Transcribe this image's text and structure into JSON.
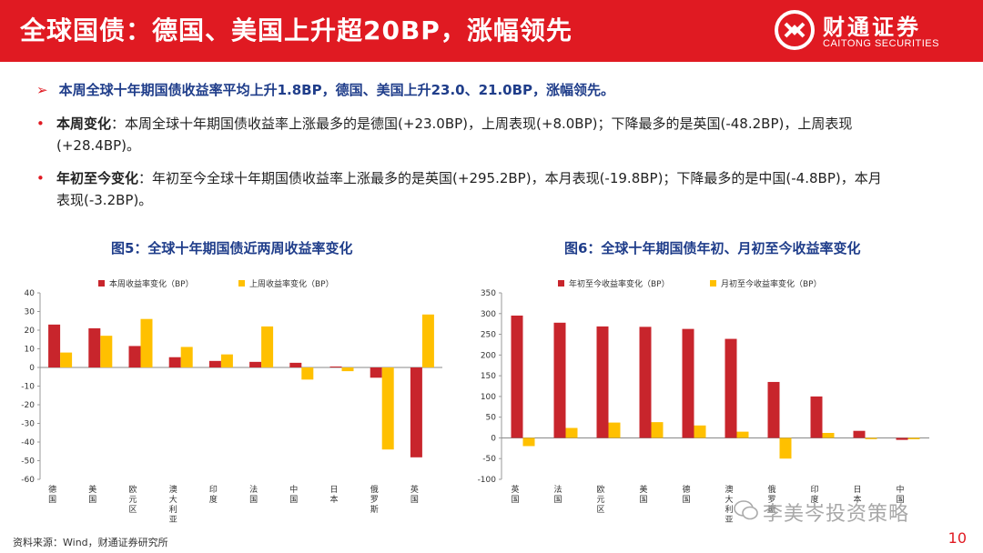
{
  "header": {
    "title": "全球国债：德国、美国上升超20BP，涨幅领先",
    "logo_cn": "财通证券",
    "logo_en": "CAITONG SECURITIES",
    "brand_color": "#e01a22"
  },
  "lead": "本周全球十年期国债收益率平均上升1.8BP，德国、美国上升23.0、21.0BP，涨幅领先。",
  "bullets": [
    {
      "label": "本周变化",
      "text": "：本周全球十年期国债收益率上涨最多的是德国(+23.0BP)，上周表现(+8.0BP)；下降最多的是英国(-48.2BP)，上周表现(+28.4BP)。"
    },
    {
      "label": "年初至今变化",
      "text": "：年初至今全球十年期国债收益率上涨最多的是英国(+295.2BP)，本月表现(-19.8BP)；下降最多的是中国(-4.8BP)，本月表现(-3.2BP)。"
    }
  ],
  "source": "资料来源：Wind，财通证券研究所",
  "page_number": "10",
  "watermark": "李美岑投资策略",
  "chart_data": [
    {
      "type": "bar",
      "title": "图5：全球十年期国债近两周收益率变化",
      "categories": [
        "德国",
        "美国",
        "欧元区",
        "澳大利亚",
        "印度",
        "法国",
        "中国",
        "日本",
        "俄罗斯",
        "英国"
      ],
      "series": [
        {
          "name": "本周收益率变化（BP）",
          "color": "#c8252c",
          "values": [
            23.0,
            21.0,
            11.5,
            5.5,
            3.5,
            3.0,
            2.5,
            0.5,
            -5.5,
            -48.2
          ]
        },
        {
          "name": "上周收益率变化（BP）",
          "color": "#ffc000",
          "values": [
            8.0,
            17.0,
            26.0,
            11.0,
            7.0,
            22.0,
            -6.5,
            -2.0,
            -44.0,
            28.4
          ]
        }
      ],
      "ylim": [
        -60,
        40
      ],
      "yticks": [
        40,
        30,
        20,
        10,
        0,
        -10,
        -20,
        -30,
        -40,
        -50,
        -60
      ],
      "legend": "top"
    },
    {
      "type": "bar",
      "title": "图6：全球十年期国债年初、月初至今收益率变化",
      "categories": [
        "英国",
        "法国",
        "欧元区",
        "美国",
        "德国",
        "澳大利亚",
        "俄罗斯",
        "印度",
        "日本",
        "中国"
      ],
      "series": [
        {
          "name": "年初至今收益率变化（BP）",
          "color": "#c8252c",
          "values": [
            295.2,
            278,
            269,
            268,
            263,
            239,
            135,
            100,
            17,
            -4.8
          ]
        },
        {
          "name": "月初至今收益率变化（BP）",
          "color": "#ffc000",
          "values": [
            -19.8,
            24,
            37,
            38,
            30,
            15,
            -50,
            12,
            -3,
            -3.2
          ]
        }
      ],
      "ylim": [
        -100,
        350
      ],
      "yticks": [
        350,
        300,
        250,
        200,
        150,
        100,
        50,
        0,
        -50,
        -100
      ],
      "legend": "top"
    }
  ]
}
